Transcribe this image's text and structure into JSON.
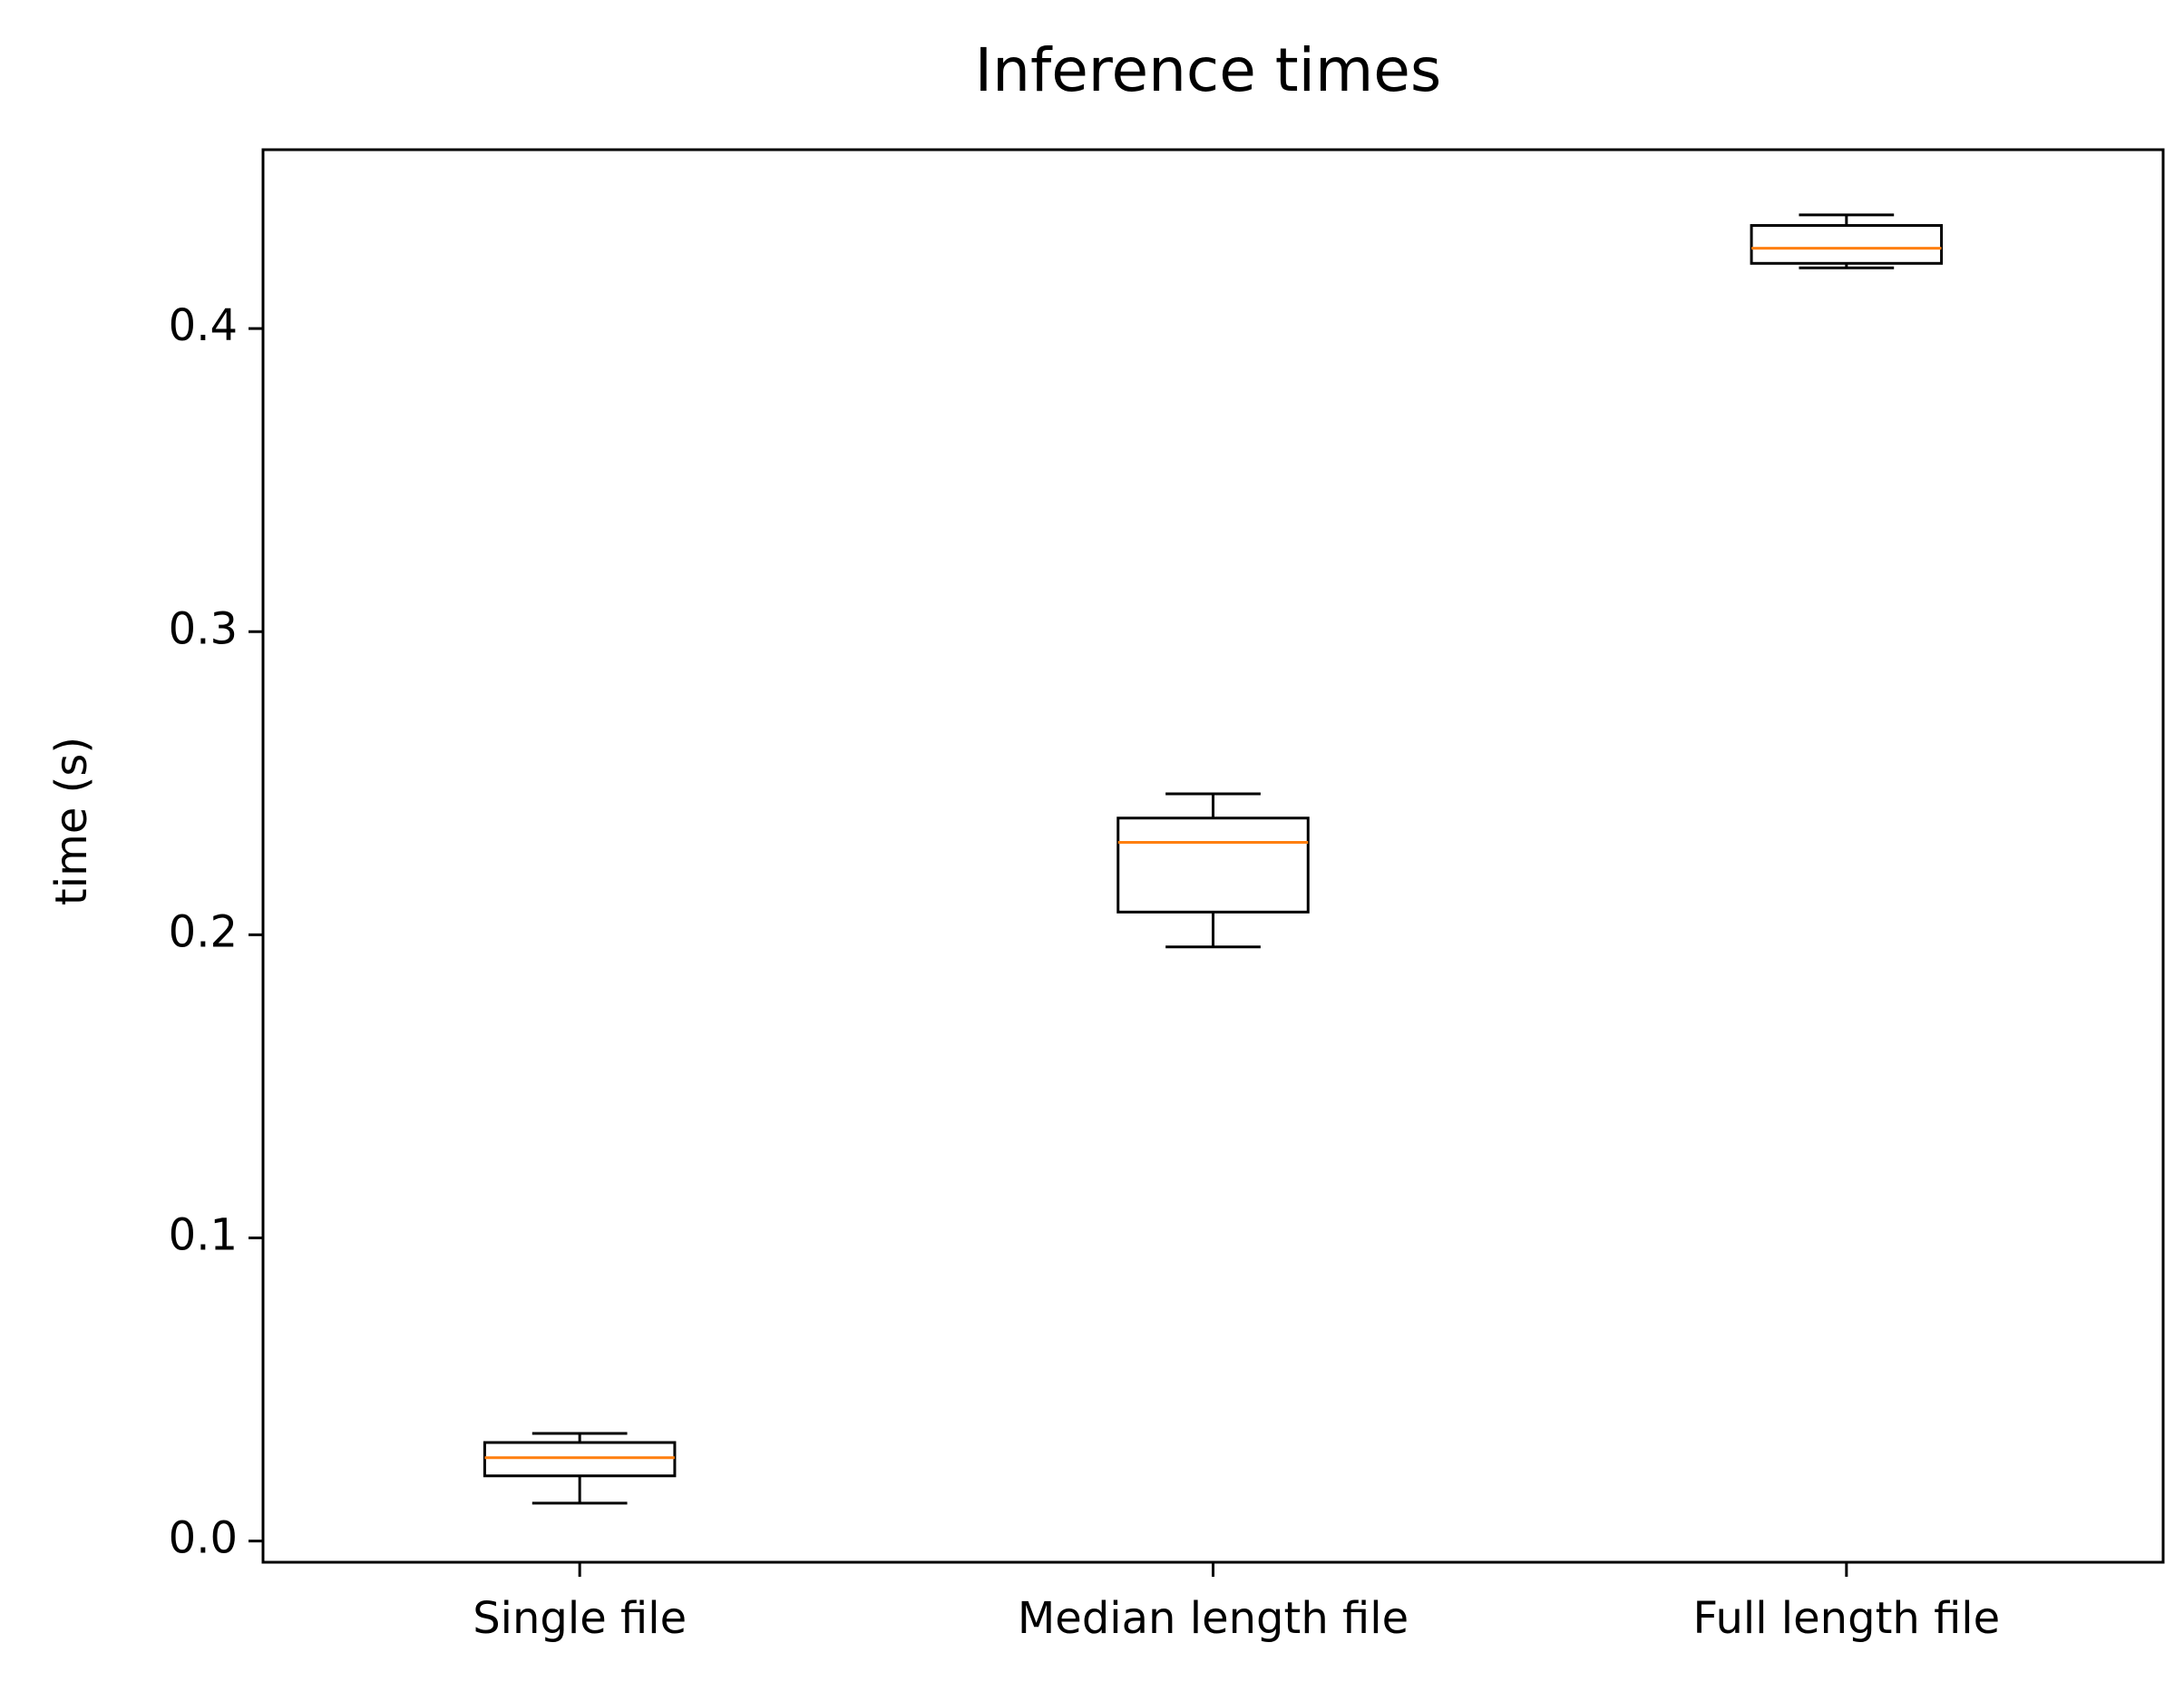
{
  "chart_data": {
    "type": "box",
    "title": "Inference times",
    "xlabel": "",
    "ylabel": "time (s)",
    "ylim": [
      -0.007,
      0.459
    ],
    "yticks": [
      0.0,
      0.1,
      0.2,
      0.3,
      0.4
    ],
    "ytick_labels": [
      "0.0",
      "0.1",
      "0.2",
      "0.3",
      "0.4"
    ],
    "grid": false,
    "categories": [
      "Single file",
      "Median length file",
      "Full length file"
    ],
    "boxes": [
      {
        "category": "Single file",
        "whisker_low": 0.0125,
        "q1": 0.0215,
        "median": 0.0275,
        "q3": 0.0325,
        "whisker_high": 0.0355
      },
      {
        "category": "Median length file",
        "whisker_low": 0.196,
        "q1": 0.2075,
        "median": 0.2305,
        "q3": 0.2385,
        "whisker_high": 0.2465
      },
      {
        "category": "Full length file",
        "whisker_low": 0.42,
        "q1": 0.4215,
        "median": 0.4265,
        "q3": 0.434,
        "whisker_high": 0.4375
      }
    ],
    "colors": {
      "box": "#000000",
      "median": "#ff7f0e",
      "axes": "#000000"
    }
  }
}
